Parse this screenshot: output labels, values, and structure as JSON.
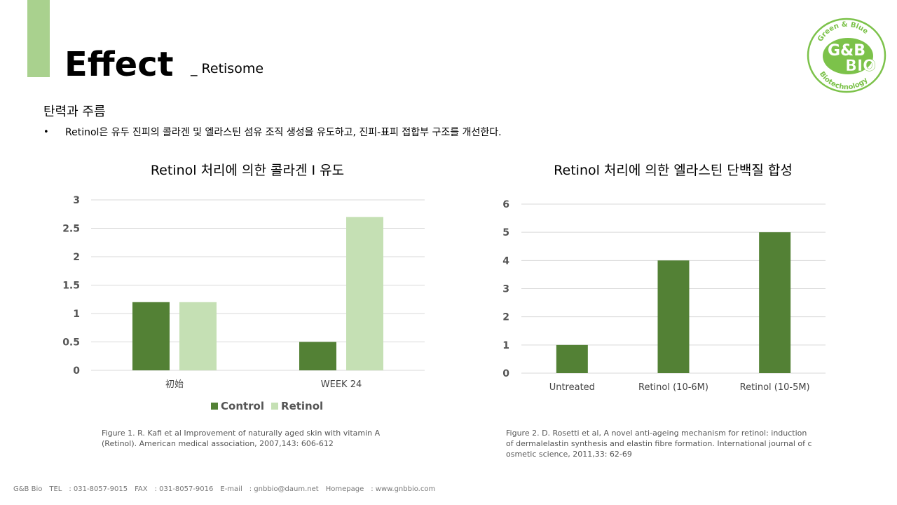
{
  "header": {
    "title": "Effect",
    "subtitle": "_ Retisome"
  },
  "section": {
    "heading": "탄력과 주름",
    "bullet_marker": "•",
    "bullet": "Retinol은 유두 진피의 콜라겐 및 엘라스틴 섬유 조직 생성을 유도하고, 진피-표피 접합부 구조를 개선한다."
  },
  "logo": {
    "top_text": "Green & Blue",
    "main_text_1": "G&B",
    "main_text_2": "BIO",
    "bottom_text": "Biotechnology"
  },
  "colors": {
    "accent": "#a9d18e",
    "dark_green": "#538135",
    "light_green": "#c5e0b4",
    "grid": "#d9d9d9"
  },
  "chart_data": [
    {
      "type": "bar",
      "title": "Retinol 처리에 의한 콜라겐 Ⅰ 유도",
      "categories": [
        "初始",
        "WEEK 24"
      ],
      "series": [
        {
          "name": "Control",
          "values": [
            1.2,
            0.5
          ],
          "color": "#538135"
        },
        {
          "name": "Retinol",
          "values": [
            1.2,
            2.7
          ],
          "color": "#c5e0b4"
        }
      ],
      "ylim": [
        0,
        3
      ],
      "yticks": [
        "0",
        "0.5",
        "1",
        "1.5",
        "2",
        "2.5",
        "3"
      ],
      "grid": true,
      "legend": "bottom",
      "caption": [
        "Figure 1. R. Kafi et al Improvement of naturally aged skin with vitamin A",
        "(Retinol). American medical association, 2007,143: 606-612"
      ]
    },
    {
      "type": "bar",
      "title": "Retinol 처리에 의한 엘라스틴 단백질 합성",
      "categories": [
        "Untreated",
        "Retinol (10-6M)",
        "Retinol (10-5M)"
      ],
      "series": [
        {
          "values": [
            1,
            4,
            5
          ],
          "color": "#538135"
        }
      ],
      "ylim": [
        0,
        6
      ],
      "yticks": [
        "0",
        "1",
        "2",
        "3",
        "4",
        "5",
        "6"
      ],
      "grid": true,
      "caption": [
        "Figure 2. D. Rosetti et al, A novel anti-ageing mechanism for retinol: induction",
        "of dermalelastin synthesis and elastin fibre formation. International journal of c",
        "osmetic science, 2011,33: 62-69"
      ]
    }
  ],
  "footer": {
    "company": "G&B Bio",
    "tel_label": "TEL",
    "tel": ": 031-8057-9015",
    "fax_label": "FAX",
    "fax": ": 031-8057-9016",
    "email_label": "E-mail",
    "email": ": gnbbio@daum.net",
    "homepage_label": "Homepage",
    "homepage": ": www.gnbbio.com"
  }
}
